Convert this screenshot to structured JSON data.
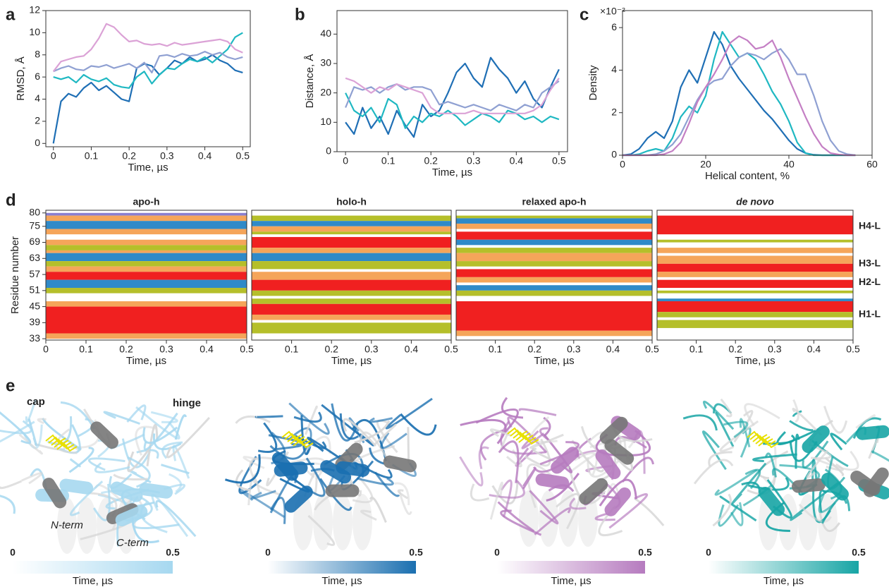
{
  "chart_data": [
    {
      "type": "line",
      "panel_label": "a",
      "xlabel": "Time, µs",
      "ylabel": "RMSD, Å",
      "x": [
        0,
        0.02,
        0.04,
        0.06,
        0.08,
        0.1,
        0.12,
        0.14,
        0.16,
        0.18,
        0.2,
        0.22,
        0.24,
        0.26,
        0.28,
        0.3,
        0.32,
        0.34,
        0.36,
        0.38,
        0.4,
        0.42,
        0.44,
        0.46,
        0.48,
        0.5
      ],
      "xlim": [
        -0.02,
        0.52
      ],
      "xticks": [
        0,
        0.1,
        0.2,
        0.3,
        0.4,
        0.5
      ],
      "ylim": [
        -0.3,
        12
      ],
      "yticks": [
        0,
        2,
        4,
        6,
        8,
        10,
        12
      ],
      "series": [
        {
          "color": "#1f6fb5",
          "values": [
            0,
            3.8,
            4.5,
            4.2,
            5,
            5.5,
            4.8,
            5.2,
            4.6,
            4,
            3.8,
            6.8,
            7.2,
            7,
            6.2,
            6.8,
            7.5,
            7.2,
            7.8,
            7.4,
            7.6,
            8,
            7.5,
            7.2,
            6.6,
            6.4
          ]
        },
        {
          "color": "#1fb8c2",
          "values": [
            6,
            5.8,
            6,
            5.5,
            6.2,
            5.8,
            5.6,
            5.9,
            5.3,
            5.1,
            5,
            6,
            6.5,
            5.4,
            6.2,
            6.8,
            6.7,
            7.2,
            7.6,
            7.4,
            7.8,
            7.3,
            7.9,
            8.5,
            9.6,
            10
          ]
        },
        {
          "color": "#8fa0d2",
          "values": [
            6.5,
            6.8,
            7,
            6.7,
            6.6,
            7,
            6.9,
            7.1,
            6.8,
            7,
            7.2,
            6.8,
            7.3,
            6.4,
            7.9,
            8,
            7.8,
            8.1,
            7.9,
            8,
            8.3,
            8,
            8.2,
            7.8,
            7.6,
            7.8
          ]
        },
        {
          "color": "#dba2d6",
          "values": [
            6.5,
            7.4,
            7.6,
            7.8,
            7.9,
            8.5,
            9.5,
            10.8,
            10.5,
            9.8,
            9.2,
            9.3,
            9,
            8.9,
            9,
            8.8,
            9.1,
            8.9,
            9,
            9.1,
            9.2,
            9.3,
            9.4,
            9.2,
            8.5,
            8.2
          ]
        }
      ]
    },
    {
      "type": "line",
      "panel_label": "b",
      "xlabel": "Time, µs",
      "ylabel": "Distance, Å",
      "x": [
        0,
        0.02,
        0.04,
        0.06,
        0.08,
        0.1,
        0.12,
        0.14,
        0.16,
        0.18,
        0.2,
        0.22,
        0.24,
        0.26,
        0.28,
        0.3,
        0.32,
        0.34,
        0.36,
        0.38,
        0.4,
        0.42,
        0.44,
        0.46,
        0.48,
        0.5
      ],
      "xlim": [
        -0.02,
        0.52
      ],
      "xticks": [
        0,
        0.1,
        0.2,
        0.3,
        0.4,
        0.5
      ],
      "ylim": [
        0,
        48
      ],
      "yticks": [
        0,
        10,
        20,
        30,
        40
      ],
      "series": [
        {
          "color": "#1f6fb5",
          "values": [
            10,
            6,
            15,
            8,
            12,
            6,
            14,
            9,
            5,
            16,
            12,
            14,
            20,
            27,
            30,
            25,
            22,
            32,
            28,
            25,
            20,
            24,
            18,
            15,
            22,
            28
          ]
        },
        {
          "color": "#1fb8c2",
          "values": [
            20,
            14,
            12,
            15,
            10,
            18,
            16,
            8,
            12,
            10,
            13,
            12,
            14,
            12,
            9,
            11,
            13,
            12,
            10,
            14,
            13,
            11,
            12,
            10,
            12,
            11
          ]
        },
        {
          "color": "#8fa0d2",
          "values": [
            15,
            22,
            21,
            22,
            20,
            22,
            23,
            21,
            22,
            22,
            21,
            16,
            17,
            16,
            15,
            16,
            15,
            14,
            16,
            15,
            14,
            16,
            15,
            20,
            22,
            24
          ]
        },
        {
          "color": "#dba2d6",
          "values": [
            25,
            24,
            22,
            20,
            22,
            21,
            23,
            22,
            21,
            20,
            15,
            13,
            13,
            13,
            13,
            14,
            13,
            13,
            13,
            13,
            13,
            13,
            14,
            16,
            21,
            25
          ]
        }
      ]
    },
    {
      "type": "line",
      "panel_label": "c",
      "xlabel": "Helical content, %",
      "ylabel": "Density",
      "multiplier": "×10⁻²",
      "x": [
        0,
        2,
        4,
        6,
        8,
        10,
        12,
        14,
        16,
        18,
        20,
        22,
        24,
        26,
        28,
        30,
        32,
        34,
        36,
        38,
        40,
        42,
        44,
        46,
        48,
        50,
        52,
        54,
        56
      ],
      "xlim": [
        0,
        60
      ],
      "xticks": [
        0,
        20,
        40,
        60
      ],
      "ylim": [
        0,
        6.8
      ],
      "yticks": [
        0,
        2,
        4,
        6
      ],
      "series": [
        {
          "color": "#1f6fb5",
          "values": [
            0,
            0.05,
            0.3,
            0.8,
            1.1,
            0.8,
            1.6,
            3.2,
            4,
            3.4,
            4.6,
            5.8,
            5.2,
            4.2,
            3.6,
            3.1,
            2.6,
            2.1,
            1.7,
            1.2,
            0.7,
            0.3,
            0.1,
            0.02,
            0,
            0,
            0,
            0,
            0
          ]
        },
        {
          "color": "#1fb8c2",
          "values": [
            0,
            0,
            0.05,
            0.2,
            0.3,
            0.2,
            0.8,
            1.8,
            2.3,
            2,
            2.8,
            4.5,
            5.8,
            5.2,
            4.6,
            4.8,
            4.5,
            3.8,
            3,
            2.4,
            1.6,
            0.6,
            0.1,
            0,
            0,
            0,
            0,
            0,
            0
          ]
        },
        {
          "color": "#8fa0d2",
          "values": [
            0,
            0,
            0,
            0,
            0.05,
            0.2,
            0.5,
            1,
            1.8,
            2.6,
            3.2,
            3.5,
            3.6,
            4.2,
            4.6,
            4.8,
            4.7,
            4.5,
            4.8,
            5,
            4.5,
            3.8,
            3.8,
            2.8,
            1.6,
            0.7,
            0.2,
            0.05,
            0
          ]
        },
        {
          "color": "#c47fc4",
          "values": [
            0,
            0,
            0,
            0,
            0,
            0.05,
            0.2,
            0.6,
            1.5,
            2.5,
            3.2,
            3.8,
            4.5,
            5.3,
            5.6,
            5.4,
            5,
            5.1,
            5.4,
            4.6,
            3.6,
            2.7,
            1.8,
            1,
            0.4,
            0.1,
            0.03,
            0,
            0
          ]
        }
      ]
    },
    {
      "type": "bands",
      "panel_label": "d",
      "title": "apo-h",
      "xlabel": "Time, µs",
      "ylabel": "Residue number",
      "xlim": [
        0,
        0.5
      ],
      "xticks": [
        0,
        0.1,
        0.2,
        0.3,
        0.4,
        0.5
      ],
      "ylim": [
        32.5,
        81
      ],
      "yticks": [
        80,
        75,
        69,
        63,
        57,
        51,
        45,
        39,
        33
      ],
      "bands": [
        {
          "residues": [
            79,
            80
          ],
          "color": "#8a7fd0"
        },
        {
          "residues": [
            77,
            79
          ],
          "color": "#f5a55a"
        },
        {
          "residues": [
            74,
            77
          ],
          "color": "#2f8ac8"
        },
        {
          "residues": [
            72,
            74
          ],
          "color": "#f5a55a"
        },
        {
          "residues": [
            68,
            70
          ],
          "color": "#f5a55a"
        },
        {
          "residues": [
            66,
            68
          ],
          "color": "#b5bf2a"
        },
        {
          "residues": [
            65,
            66
          ],
          "color": "#f5a55a"
        },
        {
          "residues": [
            62,
            65
          ],
          "color": "#2f8ac8"
        },
        {
          "residues": [
            60,
            62
          ],
          "color": "#b5bf2a"
        },
        {
          "residues": [
            58,
            60
          ],
          "color": "#f5a55a"
        },
        {
          "residues": [
            55,
            58
          ],
          "color": "#f02020"
        },
        {
          "residues": [
            52,
            55
          ],
          "color": "#2f8ac8"
        },
        {
          "residues": [
            50,
            52
          ],
          "color": "#b5bf2a"
        },
        {
          "residues": [
            45,
            47
          ],
          "color": "#f5a55a"
        },
        {
          "residues": [
            35,
            45
          ],
          "color": "#f02020"
        },
        {
          "residues": [
            33,
            35
          ],
          "color": "#f5a55a"
        }
      ]
    },
    {
      "type": "bands",
      "title": "holo-h",
      "xlabel": "Time, µs",
      "xlim": [
        0,
        0.5
      ],
      "xticks": [
        0.1,
        0.2,
        0.3,
        0.4,
        0.5
      ],
      "ylim": [
        32.5,
        81
      ],
      "bands": [
        {
          "residues": [
            77,
            79
          ],
          "color": "#b5bf2a"
        },
        {
          "residues": [
            75,
            77
          ],
          "color": "#2f8ac8"
        },
        {
          "residues": [
            73,
            75
          ],
          "color": "#f5a55a"
        },
        {
          "residues": [
            72,
            73
          ],
          "color": "#b5bf2a"
        },
        {
          "residues": [
            67,
            71
          ],
          "color": "#f02020"
        },
        {
          "residues": [
            65,
            67
          ],
          "color": "#f5a55a"
        },
        {
          "residues": [
            62,
            65
          ],
          "color": "#2f8ac8"
        },
        {
          "residues": [
            59,
            62
          ],
          "color": "#b5bf2a"
        },
        {
          "residues": [
            55,
            58
          ],
          "color": "#f5a55a"
        },
        {
          "residues": [
            51,
            55
          ],
          "color": "#f02020"
        },
        {
          "residues": [
            49,
            51
          ],
          "color": "#b5bf2a"
        },
        {
          "residues": [
            46,
            48
          ],
          "color": "#b5bf2a"
        },
        {
          "residues": [
            42,
            46
          ],
          "color": "#f02020"
        },
        {
          "residues": [
            40,
            42
          ],
          "color": "#f5a55a"
        },
        {
          "residues": [
            35,
            39
          ],
          "color": "#b5bf2a"
        }
      ]
    },
    {
      "type": "bands",
      "title": "relaxed apo-h",
      "xlabel": "Time, µs",
      "xlim": [
        0,
        0.5
      ],
      "xticks": [
        0.1,
        0.2,
        0.3,
        0.4,
        0.5
      ],
      "ylim": [
        32.5,
        81
      ],
      "bands": [
        {
          "residues": [
            78,
            79
          ],
          "color": "#b5bf2a"
        },
        {
          "residues": [
            76,
            78
          ],
          "color": "#2f8ac8"
        },
        {
          "residues": [
            74,
            76
          ],
          "color": "#f5a55a"
        },
        {
          "residues": [
            70,
            73
          ],
          "color": "#f02020"
        },
        {
          "residues": [
            68,
            70
          ],
          "color": "#2f8ac8"
        },
        {
          "residues": [
            65,
            67
          ],
          "color": "#b5bf2a"
        },
        {
          "residues": [
            62,
            65
          ],
          "color": "#f5a55a"
        },
        {
          "residues": [
            60,
            62
          ],
          "color": "#b5bf2a"
        },
        {
          "residues": [
            56,
            59
          ],
          "color": "#f02020"
        },
        {
          "residues": [
            54,
            56
          ],
          "color": "#f5a55a"
        },
        {
          "residues": [
            51,
            53
          ],
          "color": "#2f8ac8"
        },
        {
          "residues": [
            49,
            51
          ],
          "color": "#b5bf2a"
        },
        {
          "residues": [
            36,
            47
          ],
          "color": "#f02020"
        },
        {
          "residues": [
            34,
            36
          ],
          "color": "#f5a55a"
        }
      ]
    },
    {
      "type": "bands",
      "title": "de novo",
      "xlabel": "Time, µs",
      "xlim": [
        0,
        0.5
      ],
      "xticks": [
        0.1,
        0.2,
        0.3,
        0.4,
        0.5
      ],
      "ylim": [
        32.5,
        81
      ],
      "bands": [
        {
          "residues": [
            72,
            79
          ],
          "color": "#f02020"
        },
        {
          "residues": [
            69,
            70
          ],
          "color": "#b5bf2a"
        },
        {
          "residues": [
            65,
            67
          ],
          "color": "#f5a55a"
        },
        {
          "residues": [
            61,
            64
          ],
          "color": "#f5a55a"
        },
        {
          "residues": [
            58,
            61
          ],
          "color": "#f02020"
        },
        {
          "residues": [
            56,
            58
          ],
          "color": "#f5a55a"
        },
        {
          "residues": [
            52,
            55
          ],
          "color": "#f02020"
        },
        {
          "residues": [
            50,
            51
          ],
          "color": "#b5bf2a"
        },
        {
          "residues": [
            47,
            48
          ],
          "color": "#2f8ac8"
        },
        {
          "residues": [
            43,
            47
          ],
          "color": "#f02020"
        },
        {
          "residues": [
            41,
            43
          ],
          "color": "#b5bf2a"
        },
        {
          "residues": [
            37,
            40
          ],
          "color": "#b5bf2a"
        }
      ],
      "annotations": [
        {
          "label": "H4-L",
          "residue": 75
        },
        {
          "label": "H3-L",
          "residue": 61
        },
        {
          "label": "H2-L",
          "residue": 54
        },
        {
          "label": "H1-L",
          "residue": 42
        }
      ]
    }
  ],
  "figure_e": {
    "panel_label": "e",
    "structures": [
      {
        "color": "#a6d8f0",
        "clim": [
          0,
          0.5
        ],
        "cticks": [
          0,
          0.5
        ],
        "clabel": "Time, µs",
        "labels": [
          "cap",
          "hinge",
          "N-term",
          "C-term"
        ]
      },
      {
        "color": "#1a6fb0",
        "clim": [
          0,
          0.5
        ],
        "cticks": [
          0,
          0.5
        ],
        "clabel": "Time, µs"
      },
      {
        "color": "#b67bbf",
        "clim": [
          0,
          0.5
        ],
        "cticks": [
          0,
          0.5
        ],
        "clabel": "Time, µs"
      },
      {
        "color": "#17a5a5",
        "clim": [
          0,
          0.5
        ],
        "cticks": [
          0,
          0.5
        ],
        "clabel": "Time, µs"
      }
    ]
  }
}
